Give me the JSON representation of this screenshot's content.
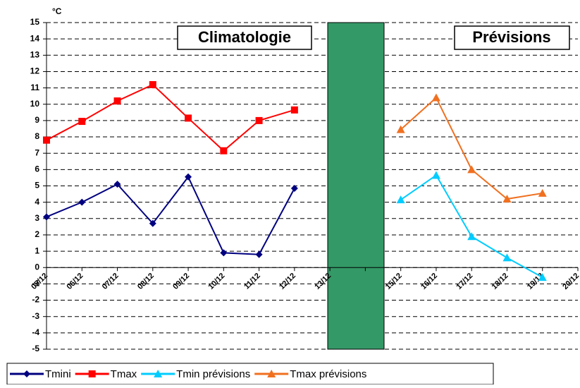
{
  "chart_data": {
    "type": "line",
    "unit_label": "°C",
    "annotations": [
      "Climatologie",
      "Prévisions"
    ],
    "categories": [
      "05/12",
      "06/12",
      "07/12",
      "08/12",
      "09/12",
      "10/12",
      "11/12",
      "12/12",
      "13/12",
      null,
      "15/12",
      "16/12",
      "17/12",
      "18/12",
      "19/12",
      "20/12"
    ],
    "series": [
      {
        "name": "Tmini",
        "color": "#000080",
        "marker": "diamond",
        "values": [
          3.1,
          4.0,
          5.1,
          2.7,
          5.55,
          0.9,
          0.8,
          4.85,
          null,
          null,
          null,
          null,
          null,
          null,
          null,
          null
        ]
      },
      {
        "name": "Tmax",
        "color": "#ff0000",
        "marker": "square",
        "values": [
          7.8,
          8.95,
          10.2,
          11.2,
          9.15,
          7.15,
          9.0,
          9.65,
          null,
          null,
          null,
          null,
          null,
          null,
          null,
          null
        ]
      },
      {
        "name": "Tmin prévisions",
        "color": "#00ccff",
        "marker": "triangle",
        "values": [
          null,
          null,
          null,
          null,
          null,
          null,
          null,
          null,
          null,
          null,
          4.15,
          5.65,
          1.9,
          0.6,
          -0.6,
          null
        ]
      },
      {
        "name": "Tmax prévisions",
        "color": "#f07020",
        "marker": "triangle",
        "values": [
          null,
          null,
          null,
          null,
          null,
          null,
          null,
          null,
          null,
          null,
          8.45,
          10.4,
          6.0,
          4.2,
          4.55,
          null
        ]
      }
    ],
    "ylim": [
      -5,
      15
    ],
    "yticks": [
      -5,
      -4,
      -3,
      -2,
      -1,
      0,
      1,
      2,
      3,
      4,
      5,
      6,
      7,
      8,
      9,
      10,
      11,
      12,
      13,
      14,
      15
    ],
    "grid": true
  }
}
